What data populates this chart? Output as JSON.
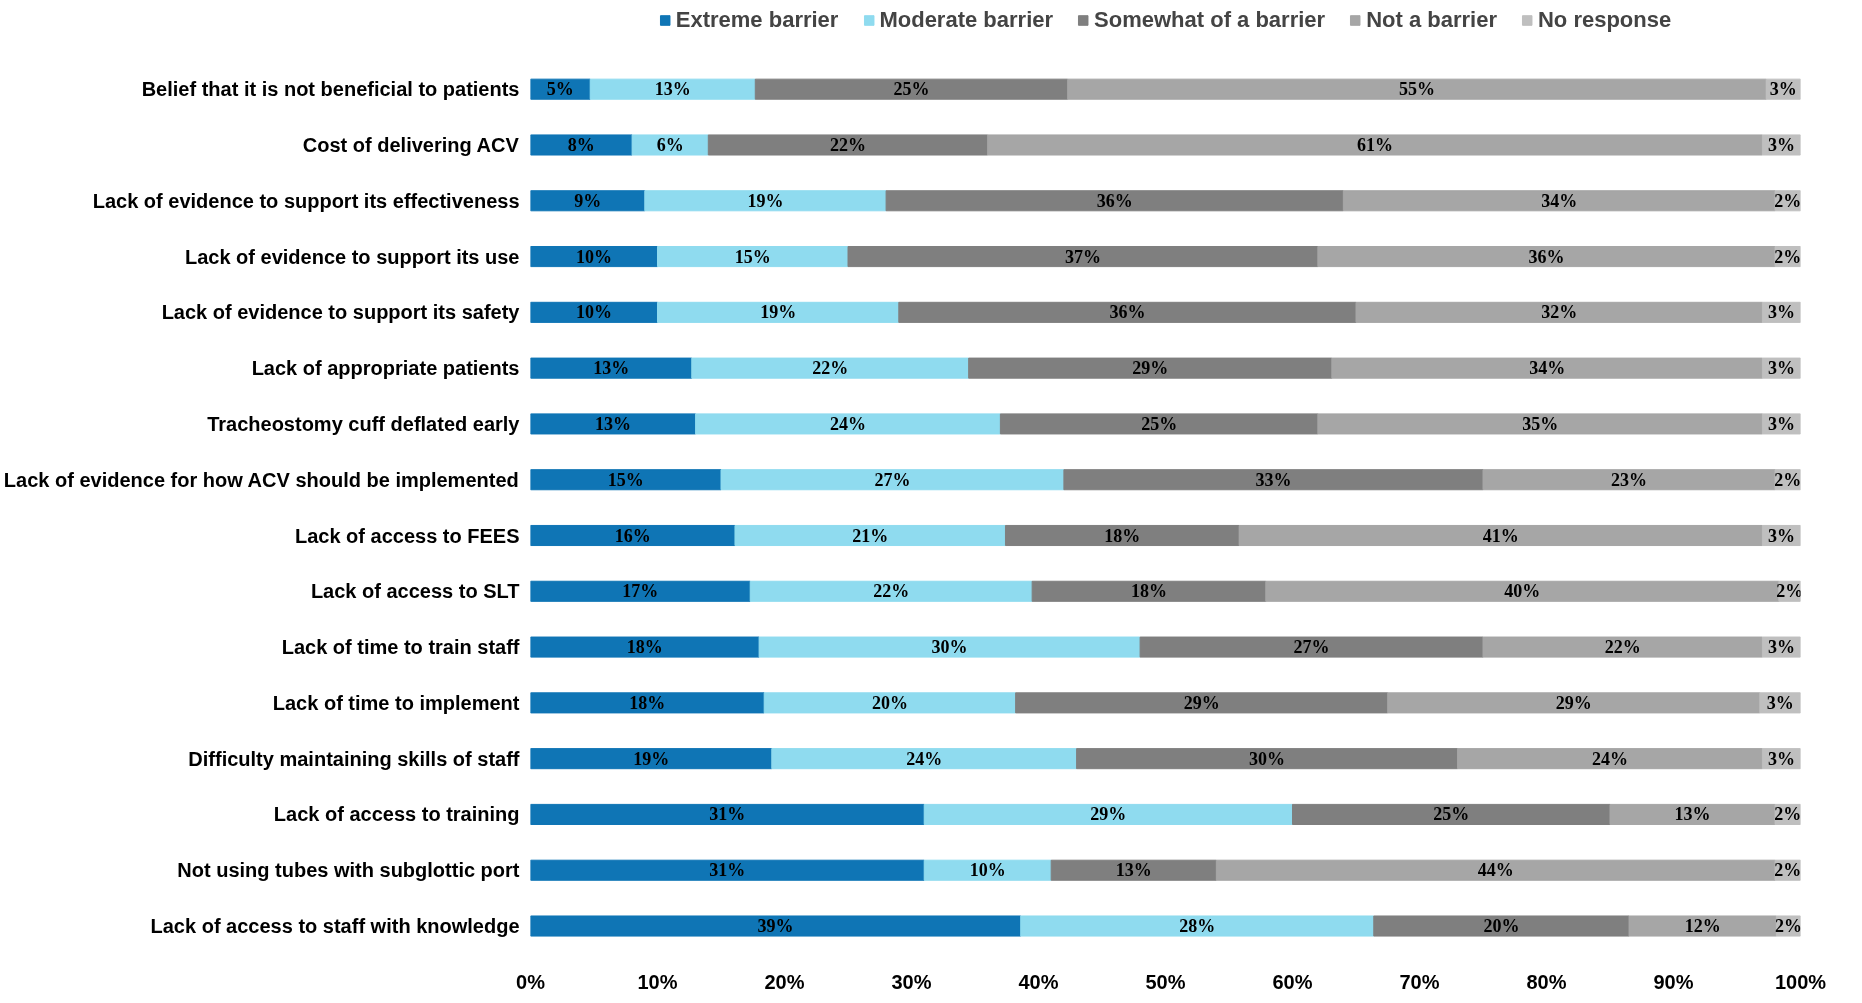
{
  "chart_data": {
    "type": "bar",
    "orientation": "horizontal",
    "stacked": true,
    "categories": [
      "Belief that it is not beneficial to patients",
      "Cost of delivering ACV",
      "Lack of evidence to support its effectiveness",
      "Lack of evidence to support its use",
      "Lack of evidence to support its safety",
      "Lack of appropriate patients",
      "Tracheostomy cuff deflated early",
      "Lack of evidence for how ACV should be implemented",
      "Lack of access to FEES",
      "Lack of access to SLT",
      "Lack of time to train staff",
      "Lack of time to implement",
      "Difficulty maintaining skills of staff",
      "Lack of access to training",
      "Not using tubes with subglottic port",
      "Lack of access to staff with knowledge"
    ],
    "series": [
      {
        "name": "Extreme barrier",
        "color": "#0f75b5",
        "values": [
          4.7,
          8,
          9,
          10,
          10,
          12.7,
          13,
          15,
          16.1,
          17.3,
          18,
          18.4,
          19,
          31,
          31,
          38.6
        ],
        "value_labels": [
          "5%",
          "8%",
          "9%",
          "10%",
          "10%",
          "13%",
          "13%",
          "15%",
          "16%",
          "17%",
          "18%",
          "18%",
          "19%",
          "31%",
          "31%",
          "39%"
        ]
      },
      {
        "name": "Moderate barrier",
        "color": "#8fdbef",
        "values": [
          13,
          6,
          19,
          15,
          19,
          21.8,
          24,
          27,
          21.3,
          22.2,
          30,
          19.8,
          24,
          29,
          10,
          27.8
        ],
        "value_labels": [
          "13%",
          "6%",
          "19%",
          "15%",
          "19%",
          "22%",
          "24%",
          "27%",
          "21%",
          "22%",
          "30%",
          "20%",
          "24%",
          "29%",
          "10%",
          "28%"
        ]
      },
      {
        "name": "Somewhat of a barrier",
        "color": "#7f7f7f",
        "values": [
          24.6,
          22,
          36,
          37,
          36,
          28.6,
          25,
          33,
          18.4,
          18.4,
          27,
          29.3,
          30,
          25,
          13,
          20.1
        ],
        "value_labels": [
          "25%",
          "22%",
          "36%",
          "37%",
          "36%",
          "29%",
          "25%",
          "33%",
          "18%",
          "18%",
          "27%",
          "29%",
          "30%",
          "25%",
          "13%",
          "20%"
        ]
      },
      {
        "name": "Not a barrier",
        "color": "#a6a6a6",
        "values": [
          55,
          61,
          34,
          36,
          32,
          33.9,
          35,
          23,
          41.2,
          40.4,
          22,
          29.3,
          24,
          13,
          44,
          11.6
        ],
        "value_labels": [
          "55%",
          "61%",
          "34%",
          "36%",
          "32%",
          "34%",
          "35%",
          "23%",
          "41%",
          "40%",
          "22%",
          "29%",
          "24%",
          "13%",
          "44%",
          "12%"
        ]
      },
      {
        "name": "No response",
        "color": "#bfbfbf",
        "values": [
          2.7,
          3,
          2,
          2,
          3,
          3,
          3,
          2,
          3,
          1.7,
          3,
          3.2,
          3,
          2,
          2,
          1.9
        ],
        "value_labels": [
          "3%",
          "3%",
          "2%",
          "2%",
          "3%",
          "3%",
          "3%",
          "2%",
          "3%",
          "2%",
          "3%",
          "3%",
          "3%",
          "2%",
          "2%",
          "2%"
        ]
      }
    ],
    "xlim": [
      0,
      100
    ],
    "xticks": [
      {
        "value": 0,
        "label": "0%"
      },
      {
        "value": 10,
        "label": "10%"
      },
      {
        "value": 20,
        "label": "20%"
      },
      {
        "value": 30,
        "label": "30%"
      },
      {
        "value": 40,
        "label": "40%"
      },
      {
        "value": 50,
        "label": "50%"
      },
      {
        "value": 60,
        "label": "60%"
      },
      {
        "value": 70,
        "label": "70%"
      },
      {
        "value": 80,
        "label": "80%"
      },
      {
        "value": 90,
        "label": "90%"
      },
      {
        "value": 100,
        "label": "100%"
      }
    ],
    "legend": "top",
    "grid": false
  }
}
